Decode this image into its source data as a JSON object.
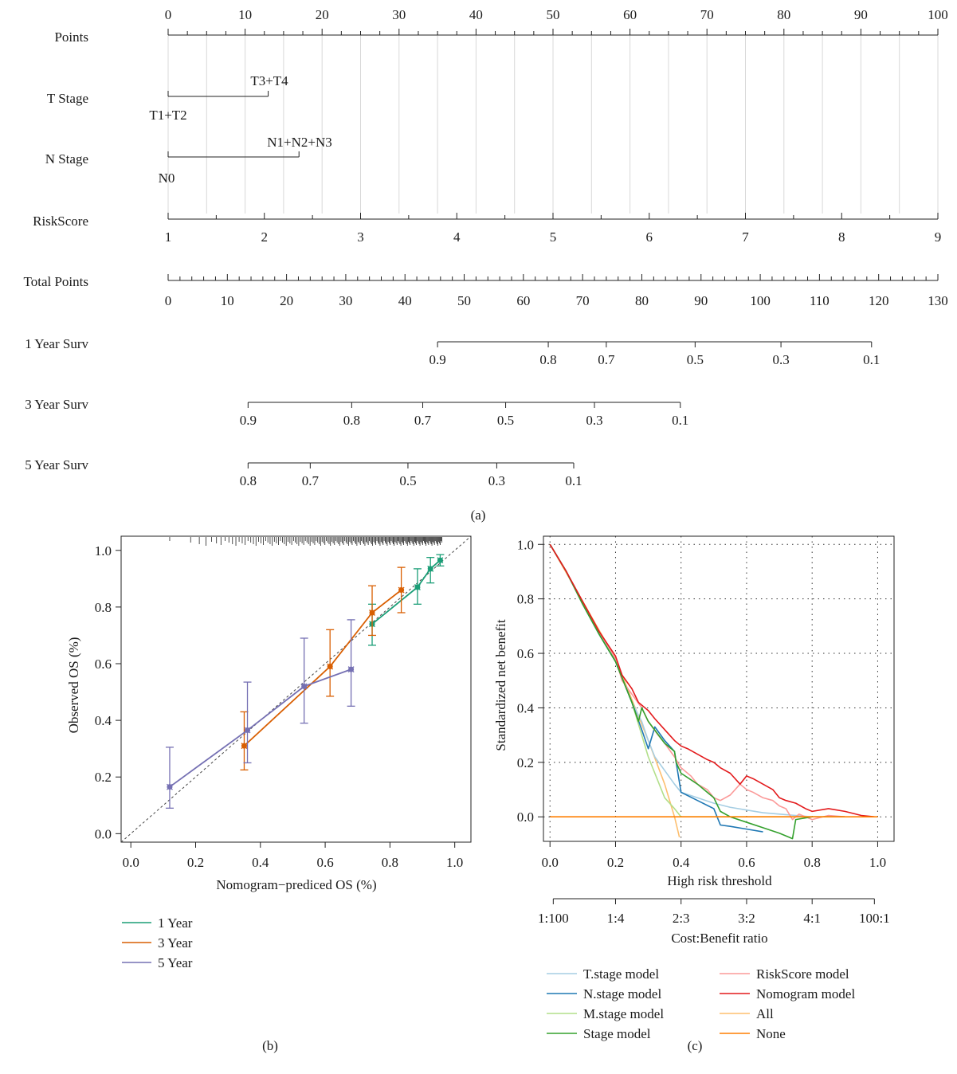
{
  "panel_labels": [
    "(a)",
    "(b)",
    "(c)"
  ],
  "colors": {
    "one_year": "#1b9e77",
    "three_year": "#d95f02",
    "five_year": "#7570b3",
    "tstage": "#a6cee3",
    "nstage": "#1f78b4",
    "mstage": "#b2df8a",
    "stage": "#33a02c",
    "riskscore": "#fb9a99",
    "nomogram": "#e31a1c",
    "all": "#fdbf6f",
    "none": "#ff7f00"
  },
  "chart_data": [
    {
      "type": "nomogram",
      "rows": {
        "points": {
          "label": "Points",
          "ticks": [
            "0",
            "10",
            "20",
            "30",
            "40",
            "50",
            "60",
            "70",
            "80",
            "90",
            "100"
          ]
        },
        "tstage": {
          "label": "T Stage",
          "levels": [
            "T1+T2",
            "T3+T4"
          ],
          "points": [
            0,
            13
          ]
        },
        "nstage": {
          "label": "N Stage",
          "levels": [
            "N0",
            "N1+N2+N3"
          ],
          "points": [
            0,
            17
          ]
        },
        "riskscore": {
          "label": "RiskScore",
          "ticks": [
            "1",
            "2",
            "3",
            "4",
            "5",
            "6",
            "7",
            "8",
            "9"
          ],
          "range_points": [
            0,
            100
          ]
        },
        "total": {
          "label": "Total Points",
          "ticks": [
            "0",
            "10",
            "20",
            "30",
            "40",
            "50",
            "60",
            "70",
            "80",
            "90",
            "100",
            "110",
            "120",
            "130"
          ]
        },
        "surv1": {
          "label": "1 Year Surv",
          "ticks": [
            {
              "label": "0.9",
              "total": 45.5
            },
            {
              "label": "0.8",
              "total": 64.2
            },
            {
              "label": "0.7",
              "total": 74.0
            },
            {
              "label": "0.5",
              "total": 89.0
            },
            {
              "label": "0.3",
              "total": 103.5
            },
            {
              "label": "0.1",
              "total": 118.8
            }
          ]
        },
        "surv3": {
          "label": "3 Year Surv",
          "ticks": [
            {
              "label": "0.9",
              "total": 13.5
            },
            {
              "label": "0.8",
              "total": 31.0
            },
            {
              "label": "0.7",
              "total": 43.0
            },
            {
              "label": "0.5",
              "total": 57.0
            },
            {
              "label": "0.3",
              "total": 72.0
            },
            {
              "label": "0.1",
              "total": 86.5
            }
          ]
        },
        "surv5": {
          "label": "5 Year Surv",
          "ticks": [
            {
              "label": "0.8",
              "total": 13.5
            },
            {
              "label": "0.7",
              "total": 24.0
            },
            {
              "label": "0.5",
              "total": 40.5
            },
            {
              "label": "0.3",
              "total": 55.5
            },
            {
              "label": "0.1",
              "total": 68.5
            }
          ]
        }
      }
    },
    {
      "type": "line",
      "xlabel": "Nomogram−prediced OS (%)",
      "ylabel": "Observed OS (%)",
      "xlim": [
        -0.03,
        1.05
      ],
      "ylim": [
        -0.03,
        1.05
      ],
      "x_ticks": [
        "0.0",
        "0.2",
        "0.4",
        "0.6",
        "0.8",
        "1.0"
      ],
      "y_ticks": [
        "0.0",
        "0.2",
        "0.4",
        "0.6",
        "0.8",
        "1.0"
      ],
      "legend": [
        "1 Year",
        "3 Year",
        "5 Year"
      ],
      "series": [
        {
          "name": "1 Year",
          "x": [
            0.745,
            0.885,
            0.925,
            0.955
          ],
          "y": [
            0.74,
            0.87,
            0.935,
            0.965
          ],
          "lo": [
            0.665,
            0.81,
            0.885,
            0.945
          ],
          "hi": [
            0.81,
            0.935,
            0.975,
            0.985
          ]
        },
        {
          "name": "3 Year",
          "x": [
            0.35,
            0.615,
            0.745,
            0.835
          ],
          "y": [
            0.31,
            0.59,
            0.78,
            0.86
          ],
          "lo": [
            0.225,
            0.485,
            0.7,
            0.78
          ],
          "hi": [
            0.43,
            0.72,
            0.875,
            0.94
          ]
        },
        {
          "name": "5 Year",
          "x": [
            0.12,
            0.36,
            0.535,
            0.68
          ],
          "y": [
            0.165,
            0.365,
            0.52,
            0.58
          ],
          "lo": [
            0.09,
            0.25,
            0.39,
            0.45
          ],
          "hi": [
            0.305,
            0.535,
            0.69,
            0.755
          ]
        }
      ]
    },
    {
      "type": "line",
      "xlabel": "High risk threshold",
      "ylabel": "Standardized net benefit",
      "x2label": "Cost:Benefit ratio",
      "xlim": [
        -0.02,
        1.05
      ],
      "ylim": [
        -0.09,
        1.03
      ],
      "x_ticks": [
        "0.0",
        "0.2",
        "0.4",
        "0.6",
        "0.8",
        "1.0"
      ],
      "y_ticks": [
        "0.0",
        "0.2",
        "0.4",
        "0.6",
        "0.8",
        "1.0"
      ],
      "x2_ticks": [
        {
          "label": "1:100",
          "x": 0.01
        },
        {
          "label": "1:4",
          "x": 0.2
        },
        {
          "label": "2:3",
          "x": 0.4
        },
        {
          "label": "3:2",
          "x": 0.6
        },
        {
          "label": "4:1",
          "x": 0.8
        },
        {
          "label": "100:1",
          "x": 0.99
        }
      ],
      "legend": [
        "T.stage model",
        "N.stage model",
        "M.stage model",
        "Stage model",
        "RiskScore model",
        "Nomogram model",
        "All",
        "None"
      ],
      "series": [
        {
          "name": "T.stage model",
          "x": [
            0,
            0.05,
            0.1,
            0.15,
            0.2,
            0.25,
            0.28,
            0.3,
            0.32,
            0.35,
            0.38,
            0.4,
            0.45,
            0.5,
            0.55,
            0.6,
            0.65,
            0.7,
            0.75,
            0.8
          ],
          "y": [
            1,
            0.9,
            0.78,
            0.67,
            0.57,
            0.42,
            0.35,
            0.28,
            0.22,
            0.17,
            0.12,
            0.09,
            0.07,
            0.05,
            0.035,
            0.025,
            0.015,
            0.01,
            0.005,
            0
          ]
        },
        {
          "name": "N.stage model",
          "x": [
            0,
            0.05,
            0.1,
            0.15,
            0.2,
            0.25,
            0.28,
            0.3,
            0.32,
            0.35,
            0.38,
            0.385,
            0.4,
            0.45,
            0.5,
            0.52,
            0.55,
            0.6,
            0.65
          ],
          "y": [
            1,
            0.9,
            0.78,
            0.67,
            0.57,
            0.42,
            0.32,
            0.25,
            0.33,
            0.28,
            0.24,
            0.2,
            0.09,
            0.06,
            0.03,
            -0.03,
            -0.035,
            -0.045,
            -0.055
          ]
        },
        {
          "name": "M.stage model",
          "x": [
            0,
            0.05,
            0.1,
            0.15,
            0.2,
            0.25,
            0.3,
            0.35,
            0.38,
            0.4,
            0.5,
            0.6,
            0.7,
            0.8
          ],
          "y": [
            1,
            0.9,
            0.78,
            0.67,
            0.57,
            0.42,
            0.22,
            0.07,
            0.03,
            0,
            0,
            0,
            0,
            0
          ]
        },
        {
          "name": "Stage model",
          "x": [
            0,
            0.05,
            0.1,
            0.15,
            0.2,
            0.25,
            0.27,
            0.28,
            0.3,
            0.35,
            0.38,
            0.385,
            0.4,
            0.45,
            0.5,
            0.52,
            0.55,
            0.6,
            0.65,
            0.7,
            0.73,
            0.74,
            0.75,
            0.8,
            0.9
          ],
          "y": [
            1,
            0.9,
            0.78,
            0.67,
            0.57,
            0.42,
            0.35,
            0.4,
            0.35,
            0.27,
            0.24,
            0.2,
            0.16,
            0.12,
            0.07,
            0.02,
            0,
            -0.02,
            -0.04,
            -0.06,
            -0.075,
            -0.08,
            -0.01,
            0,
            0
          ]
        },
        {
          "name": "RiskScore model",
          "x": [
            0,
            0.05,
            0.1,
            0.15,
            0.2,
            0.22,
            0.25,
            0.28,
            0.3,
            0.33,
            0.35,
            0.38,
            0.4,
            0.43,
            0.45,
            0.48,
            0.5,
            0.52,
            0.55,
            0.58,
            0.6,
            0.62,
            0.65,
            0.68,
            0.7,
            0.72,
            0.74,
            0.76,
            0.78,
            0.8,
            0.85,
            0.9
          ],
          "y": [
            1,
            0.9,
            0.78,
            0.68,
            0.58,
            0.5,
            0.45,
            0.4,
            0.35,
            0.3,
            0.27,
            0.22,
            0.18,
            0.15,
            0.12,
            0.1,
            0.07,
            0.06,
            0.08,
            0.12,
            0.1,
            0.09,
            0.07,
            0.06,
            0.04,
            0.03,
            -0.01,
            0.01,
            0.0,
            -0.01,
            0.005,
            0
          ]
        },
        {
          "name": "Nomogram model",
          "x": [
            0,
            0.05,
            0.1,
            0.15,
            0.2,
            0.22,
            0.25,
            0.27,
            0.3,
            0.32,
            0.35,
            0.38,
            0.4,
            0.42,
            0.45,
            0.48,
            0.5,
            0.52,
            0.55,
            0.58,
            0.6,
            0.62,
            0.65,
            0.68,
            0.7,
            0.72,
            0.75,
            0.78,
            0.8,
            0.85,
            0.9,
            0.95,
            0.99
          ],
          "y": [
            1,
            0.9,
            0.79,
            0.68,
            0.59,
            0.52,
            0.47,
            0.42,
            0.39,
            0.36,
            0.32,
            0.28,
            0.26,
            0.25,
            0.23,
            0.21,
            0.2,
            0.18,
            0.16,
            0.12,
            0.15,
            0.14,
            0.12,
            0.1,
            0.07,
            0.06,
            0.05,
            0.03,
            0.02,
            0.03,
            0.02,
            0.005,
            0
          ]
        },
        {
          "name": "All",
          "x": [
            0,
            0.1,
            0.2,
            0.3,
            0.35,
            0.38,
            0.395
          ],
          "y": [
            1,
            0.79,
            0.58,
            0.28,
            0.12,
            0.0,
            -0.075
          ]
        },
        {
          "name": "None",
          "x": [
            0,
            1
          ],
          "y": [
            0,
            0
          ]
        }
      ]
    }
  ]
}
